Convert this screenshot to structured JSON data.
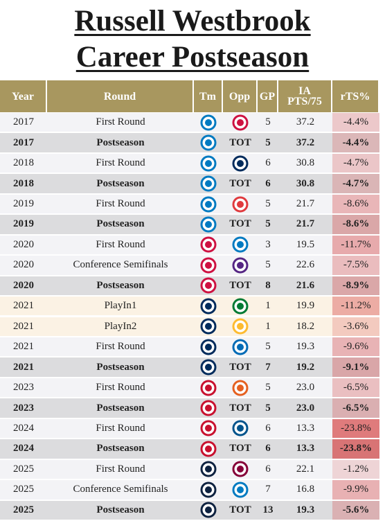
{
  "header": {
    "title": [
      "Russell Westbrook",
      "Career Postseason"
    ]
  },
  "table": {
    "columns": [
      "Year",
      "Round",
      "Tm",
      "Opp",
      "GP",
      "IA PTS/75",
      "rTS%"
    ],
    "rows": [
      {
        "year": "2017",
        "round": "First Round",
        "opp": null,
        "gp": "5",
        "pts": "37.2",
        "rts": "-4.4%",
        "bold": false
      },
      {
        "year": "2017",
        "round": "Postseason",
        "opp": "TOT",
        "gp": "5",
        "pts": "37.2",
        "rts": "-4.4%",
        "bold": true
      },
      {
        "year": "2018",
        "round": "First Round",
        "opp": null,
        "gp": "6",
        "pts": "30.8",
        "rts": "-4.7%",
        "bold": false
      },
      {
        "year": "2018",
        "round": "Postseason",
        "opp": "TOT",
        "gp": "6",
        "pts": "30.8",
        "rts": "-4.7%",
        "bold": true
      },
      {
        "year": "2019",
        "round": "First Round",
        "opp": null,
        "gp": "5",
        "pts": "21.7",
        "rts": "-8.6%",
        "bold": false
      },
      {
        "year": "2019",
        "round": "Postseason",
        "opp": "TOT",
        "gp": "5",
        "pts": "21.7",
        "rts": "-8.6%",
        "bold": true
      },
      {
        "year": "2020",
        "round": "First Round",
        "opp": null,
        "gp": "3",
        "pts": "19.5",
        "rts": "-11.7%",
        "bold": false
      },
      {
        "year": "2020",
        "round": "Conference Semifinals",
        "opp": null,
        "gp": "5",
        "pts": "22.6",
        "rts": "-7.5%",
        "bold": false
      },
      {
        "year": "2020",
        "round": "Postseason",
        "opp": "TOT",
        "gp": "8",
        "pts": "21.6",
        "rts": "-8.9%",
        "bold": true
      },
      {
        "year": "2021",
        "round": "PlayIn1",
        "opp": null,
        "gp": "1",
        "pts": "19.9",
        "rts": "-11.2%",
        "bold": false
      },
      {
        "year": "2021",
        "round": "PlayIn2",
        "opp": null,
        "gp": "1",
        "pts": "18.2",
        "rts": "-3.6%",
        "bold": false
      },
      {
        "year": "2021",
        "round": "First Round",
        "opp": null,
        "gp": "5",
        "pts": "19.3",
        "rts": "-9.6%",
        "bold": false
      },
      {
        "year": "2021",
        "round": "Postseason",
        "opp": "TOT",
        "gp": "7",
        "pts": "19.2",
        "rts": "-9.1%",
        "bold": true
      },
      {
        "year": "2023",
        "round": "First Round",
        "opp": null,
        "gp": "5",
        "pts": "23.0",
        "rts": "-6.5%",
        "bold": false
      },
      {
        "year": "2023",
        "round": "Postseason",
        "opp": "TOT",
        "gp": "5",
        "pts": "23.0",
        "rts": "-6.5%",
        "bold": true
      },
      {
        "year": "2024",
        "round": "First Round",
        "opp": null,
        "gp": "6",
        "pts": "13.3",
        "rts": "-23.8%",
        "bold": false
      },
      {
        "year": "2024",
        "round": "Postseason",
        "opp": "TOT",
        "gp": "6",
        "pts": "13.3",
        "rts": "-23.8%",
        "bold": true
      },
      {
        "year": "2025",
        "round": "First Round",
        "opp": null,
        "gp": "6",
        "pts": "22.1",
        "rts": "-1.2%",
        "bold": false
      },
      {
        "year": "2025",
        "round": "Conference Semifinals",
        "opp": null,
        "gp": "7",
        "pts": "16.8",
        "rts": "-9.9%",
        "bold": false
      },
      {
        "year": "2025",
        "round": "Postseason",
        "opp": "TOT",
        "gp": "13",
        "pts": "19.3",
        "rts": "-5.6%",
        "bold": true
      }
    ]
  }
}
